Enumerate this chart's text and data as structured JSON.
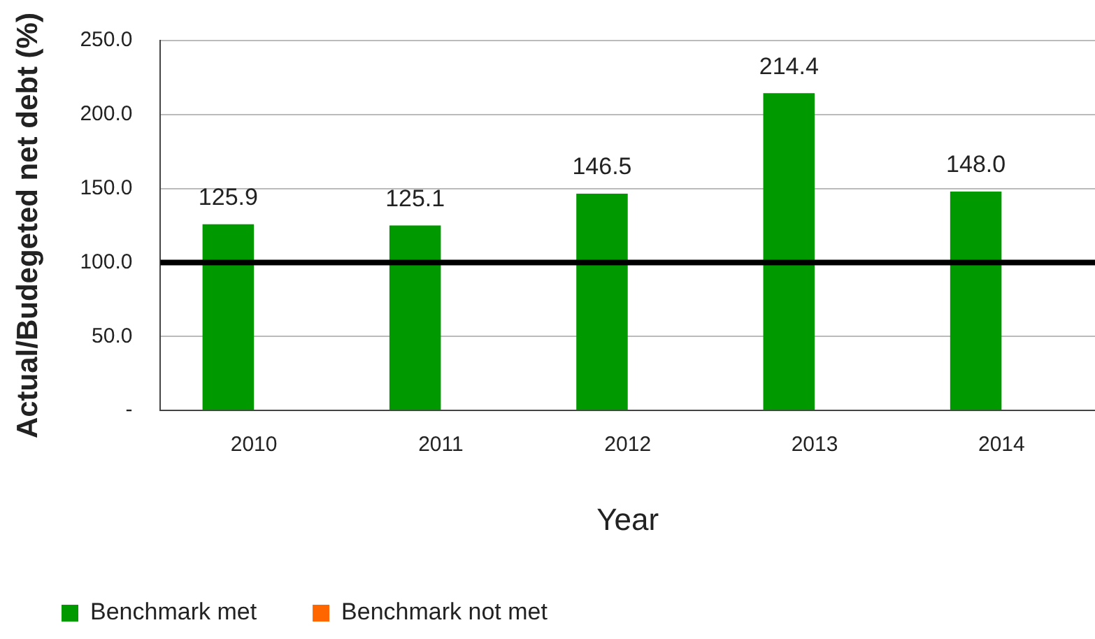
{
  "chart_data": {
    "type": "bar",
    "xlabel": "Year",
    "ylabel": "Actual/Budegeted net debt (%)",
    "categories": [
      "2010",
      "2011",
      "2012",
      "2013",
      "2014"
    ],
    "series": [
      {
        "name": "Benchmark met",
        "color": "#009900",
        "values": [
          125.9,
          125.1,
          146.5,
          214.4,
          148.0
        ],
        "value_labels": [
          "125.9",
          "125.1",
          "146.5",
          "214.4",
          "148.0"
        ]
      },
      {
        "name": "Benchmark not met",
        "color": "#ff6600",
        "values": [
          null,
          null,
          null,
          null,
          null
        ]
      }
    ],
    "ylim": [
      0,
      250
    ],
    "yticks": [
      {
        "value": 0,
        "label": "-"
      },
      {
        "value": 50,
        "label": "50.0"
      },
      {
        "value": 100,
        "label": "100.0"
      },
      {
        "value": 150,
        "label": "150.0"
      },
      {
        "value": 200,
        "label": "200.0"
      },
      {
        "value": 250,
        "label": "250.0"
      }
    ],
    "grid": "y",
    "legend": "bottom",
    "ref_lines": [
      {
        "axis": "y",
        "value": 100,
        "color": "#000000"
      }
    ]
  }
}
